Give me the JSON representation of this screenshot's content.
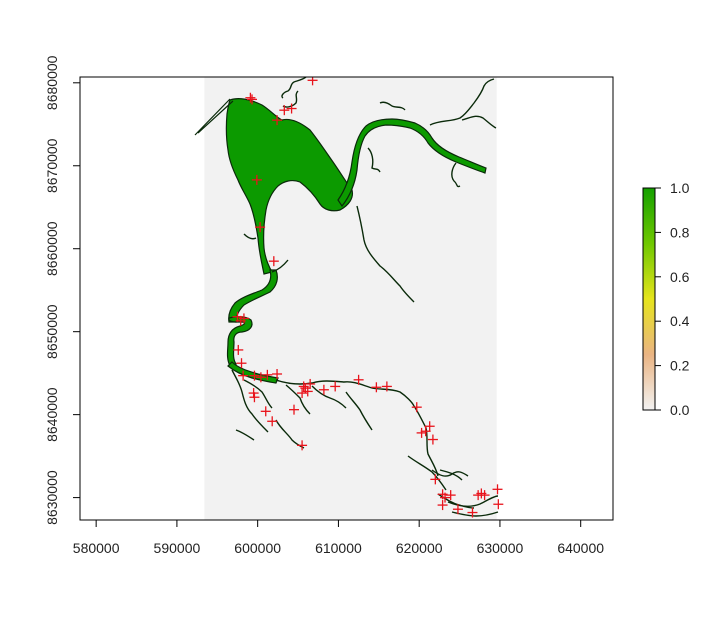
{
  "chart_data": {
    "type": "raster-map",
    "x_axis": {
      "lim": [
        578000,
        644000
      ],
      "ticks": [
        580000,
        590000,
        600000,
        610000,
        620000,
        630000,
        640000
      ],
      "tick_labels": [
        "580000",
        "590000",
        "600000",
        "610000",
        "620000",
        "630000",
        "640000"
      ]
    },
    "y_axis": {
      "lim": [
        8627300,
        8680700
      ],
      "ticks": [
        8630000,
        8640000,
        8650000,
        8660000,
        8670000,
        8680000
      ],
      "tick_labels": [
        "8630000",
        "8640000",
        "8650000",
        "8660000",
        "8670000",
        "8680000"
      ]
    },
    "extent_region": {
      "xmin": 593400,
      "xmax": 629600,
      "ymin": 8627300,
      "ymax": 8680700
    },
    "legend": {
      "min": 0.0,
      "max": 1.0,
      "ticks": [
        0.0,
        0.2,
        0.4,
        0.6,
        0.8,
        1.0
      ],
      "tick_labels": [
        "0.0",
        "0.2",
        "0.4",
        "0.6",
        "0.8",
        "1.0"
      ],
      "colors": [
        "#f2f2f2",
        "#eab483",
        "#e6e41c",
        "#6fc800",
        "#14a000"
      ]
    },
    "colors": {
      "water": "#0c9a00",
      "outline": "#0a2a0a",
      "points": "#e8141c",
      "extent": "#f2f2f2"
    },
    "points": [
      [
        599100,
        8678200
      ],
      [
        599300,
        8678000
      ],
      [
        602400,
        8675500
      ],
      [
        603300,
        8676700
      ],
      [
        604200,
        8676900
      ],
      [
        606800,
        8680300
      ],
      [
        599900,
        8668300
      ],
      [
        600300,
        8662600
      ],
      [
        602000,
        8658500
      ],
      [
        597500,
        8651800
      ],
      [
        597900,
        8651300
      ],
      [
        598300,
        8651600
      ],
      [
        597600,
        8647800
      ],
      [
        598000,
        8646200
      ],
      [
        598200,
        8644700
      ],
      [
        599600,
        8644700
      ],
      [
        600400,
        8644500
      ],
      [
        601200,
        8644800
      ],
      [
        602400,
        8644900
      ],
      [
        599500,
        8642600
      ],
      [
        599600,
        8642100
      ],
      [
        601000,
        8640400
      ],
      [
        601800,
        8639200
      ],
      [
        604500,
        8640600
      ],
      [
        605500,
        8642600
      ],
      [
        605700,
        8643400
      ],
      [
        605900,
        8643200
      ],
      [
        606200,
        8642800
      ],
      [
        606500,
        8643700
      ],
      [
        605500,
        8636300
      ],
      [
        608200,
        8643000
      ],
      [
        609600,
        8643400
      ],
      [
        612500,
        8644200
      ],
      [
        614700,
        8643300
      ],
      [
        616000,
        8643400
      ],
      [
        619700,
        8640900
      ],
      [
        620300,
        8637800
      ],
      [
        620800,
        8638000
      ],
      [
        621300,
        8638600
      ],
      [
        621700,
        8637000
      ],
      [
        622000,
        8632200
      ],
      [
        622900,
        8630400
      ],
      [
        623200,
        8630000
      ],
      [
        623900,
        8630300
      ],
      [
        622900,
        8629100
      ],
      [
        624800,
        8628600
      ],
      [
        627300,
        8630300
      ],
      [
        627700,
        8630500
      ],
      [
        628100,
        8630300
      ],
      [
        629700,
        8631000
      ],
      [
        629800,
        8629200
      ],
      [
        626600,
        8628200
      ]
    ]
  }
}
